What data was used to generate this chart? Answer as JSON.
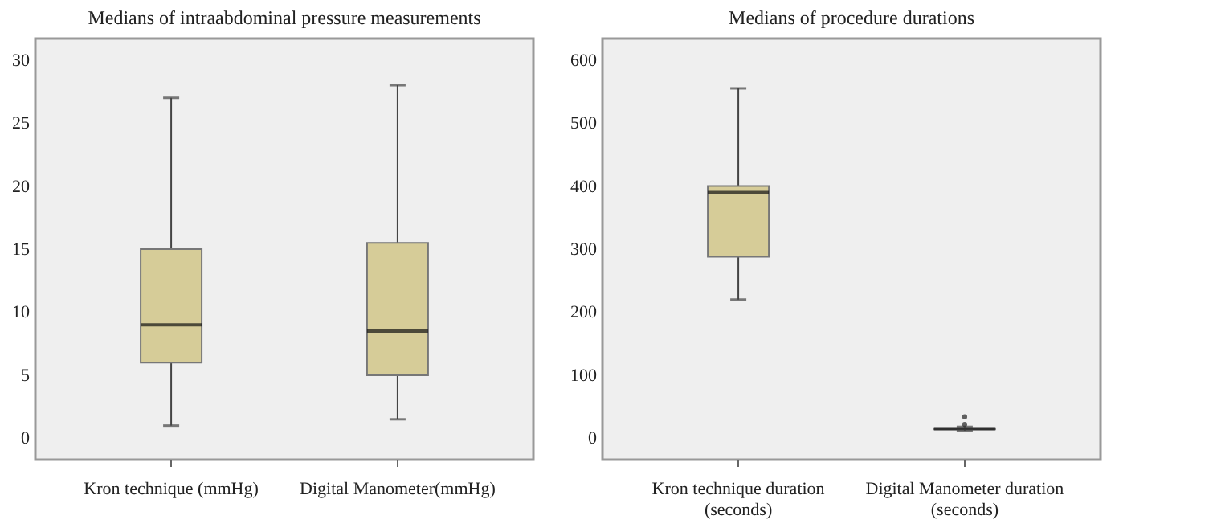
{
  "chart_data": [
    {
      "type": "box",
      "title": "Medians of intraabdominal pressure measurements",
      "categories": [
        "Kron technique (mmHg)",
        "Digital Manometer(mmHg)"
      ],
      "color": "#d6cc98",
      "grid": false,
      "ylim": [
        -1.7,
        31.7
      ],
      "yticks": [
        0,
        5,
        10,
        15,
        20,
        25,
        30
      ],
      "boxes": [
        {
          "low": 1,
          "q1": 6,
          "median": 9,
          "q3": 15,
          "high": 27
        },
        {
          "low": 1.5,
          "q1": 5,
          "median": 8.5,
          "q3": 15.5,
          "high": 28
        }
      ]
    },
    {
      "type": "box",
      "title": "Medians of procedure durations",
      "categories": [
        "Kron technique duration (seconds)",
        "Digital Manometer duration (seconds)"
      ],
      "color": "#d6cc98",
      "grid": false,
      "ylim": [
        -34,
        634
      ],
      "yticks": [
        0,
        100,
        200,
        300,
        400,
        500,
        600
      ],
      "boxes": [
        {
          "low": 220,
          "q1": 288,
          "median": 390,
          "q3": 400,
          "high": 555
        },
        {
          "low": 12,
          "q1": 14,
          "median": 15,
          "q3": 16,
          "high": 18,
          "outliers": [
            22,
            34
          ]
        }
      ]
    }
  ]
}
